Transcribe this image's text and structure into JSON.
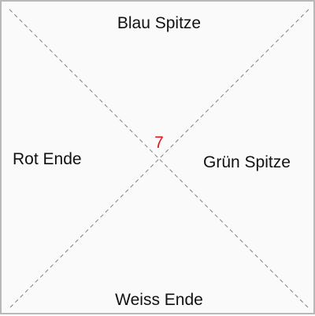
{
  "board": {
    "top_label": "Blau Spitze",
    "bottom_label": "Weiss Ende",
    "left_label": "Rot Ende",
    "right_label": "Grün Spitze",
    "center_number": "7",
    "center_number_color": "#e8141b",
    "diagonal_color": "#808080",
    "border_color": "#b8b8b8",
    "background_color": "#fafafa"
  }
}
